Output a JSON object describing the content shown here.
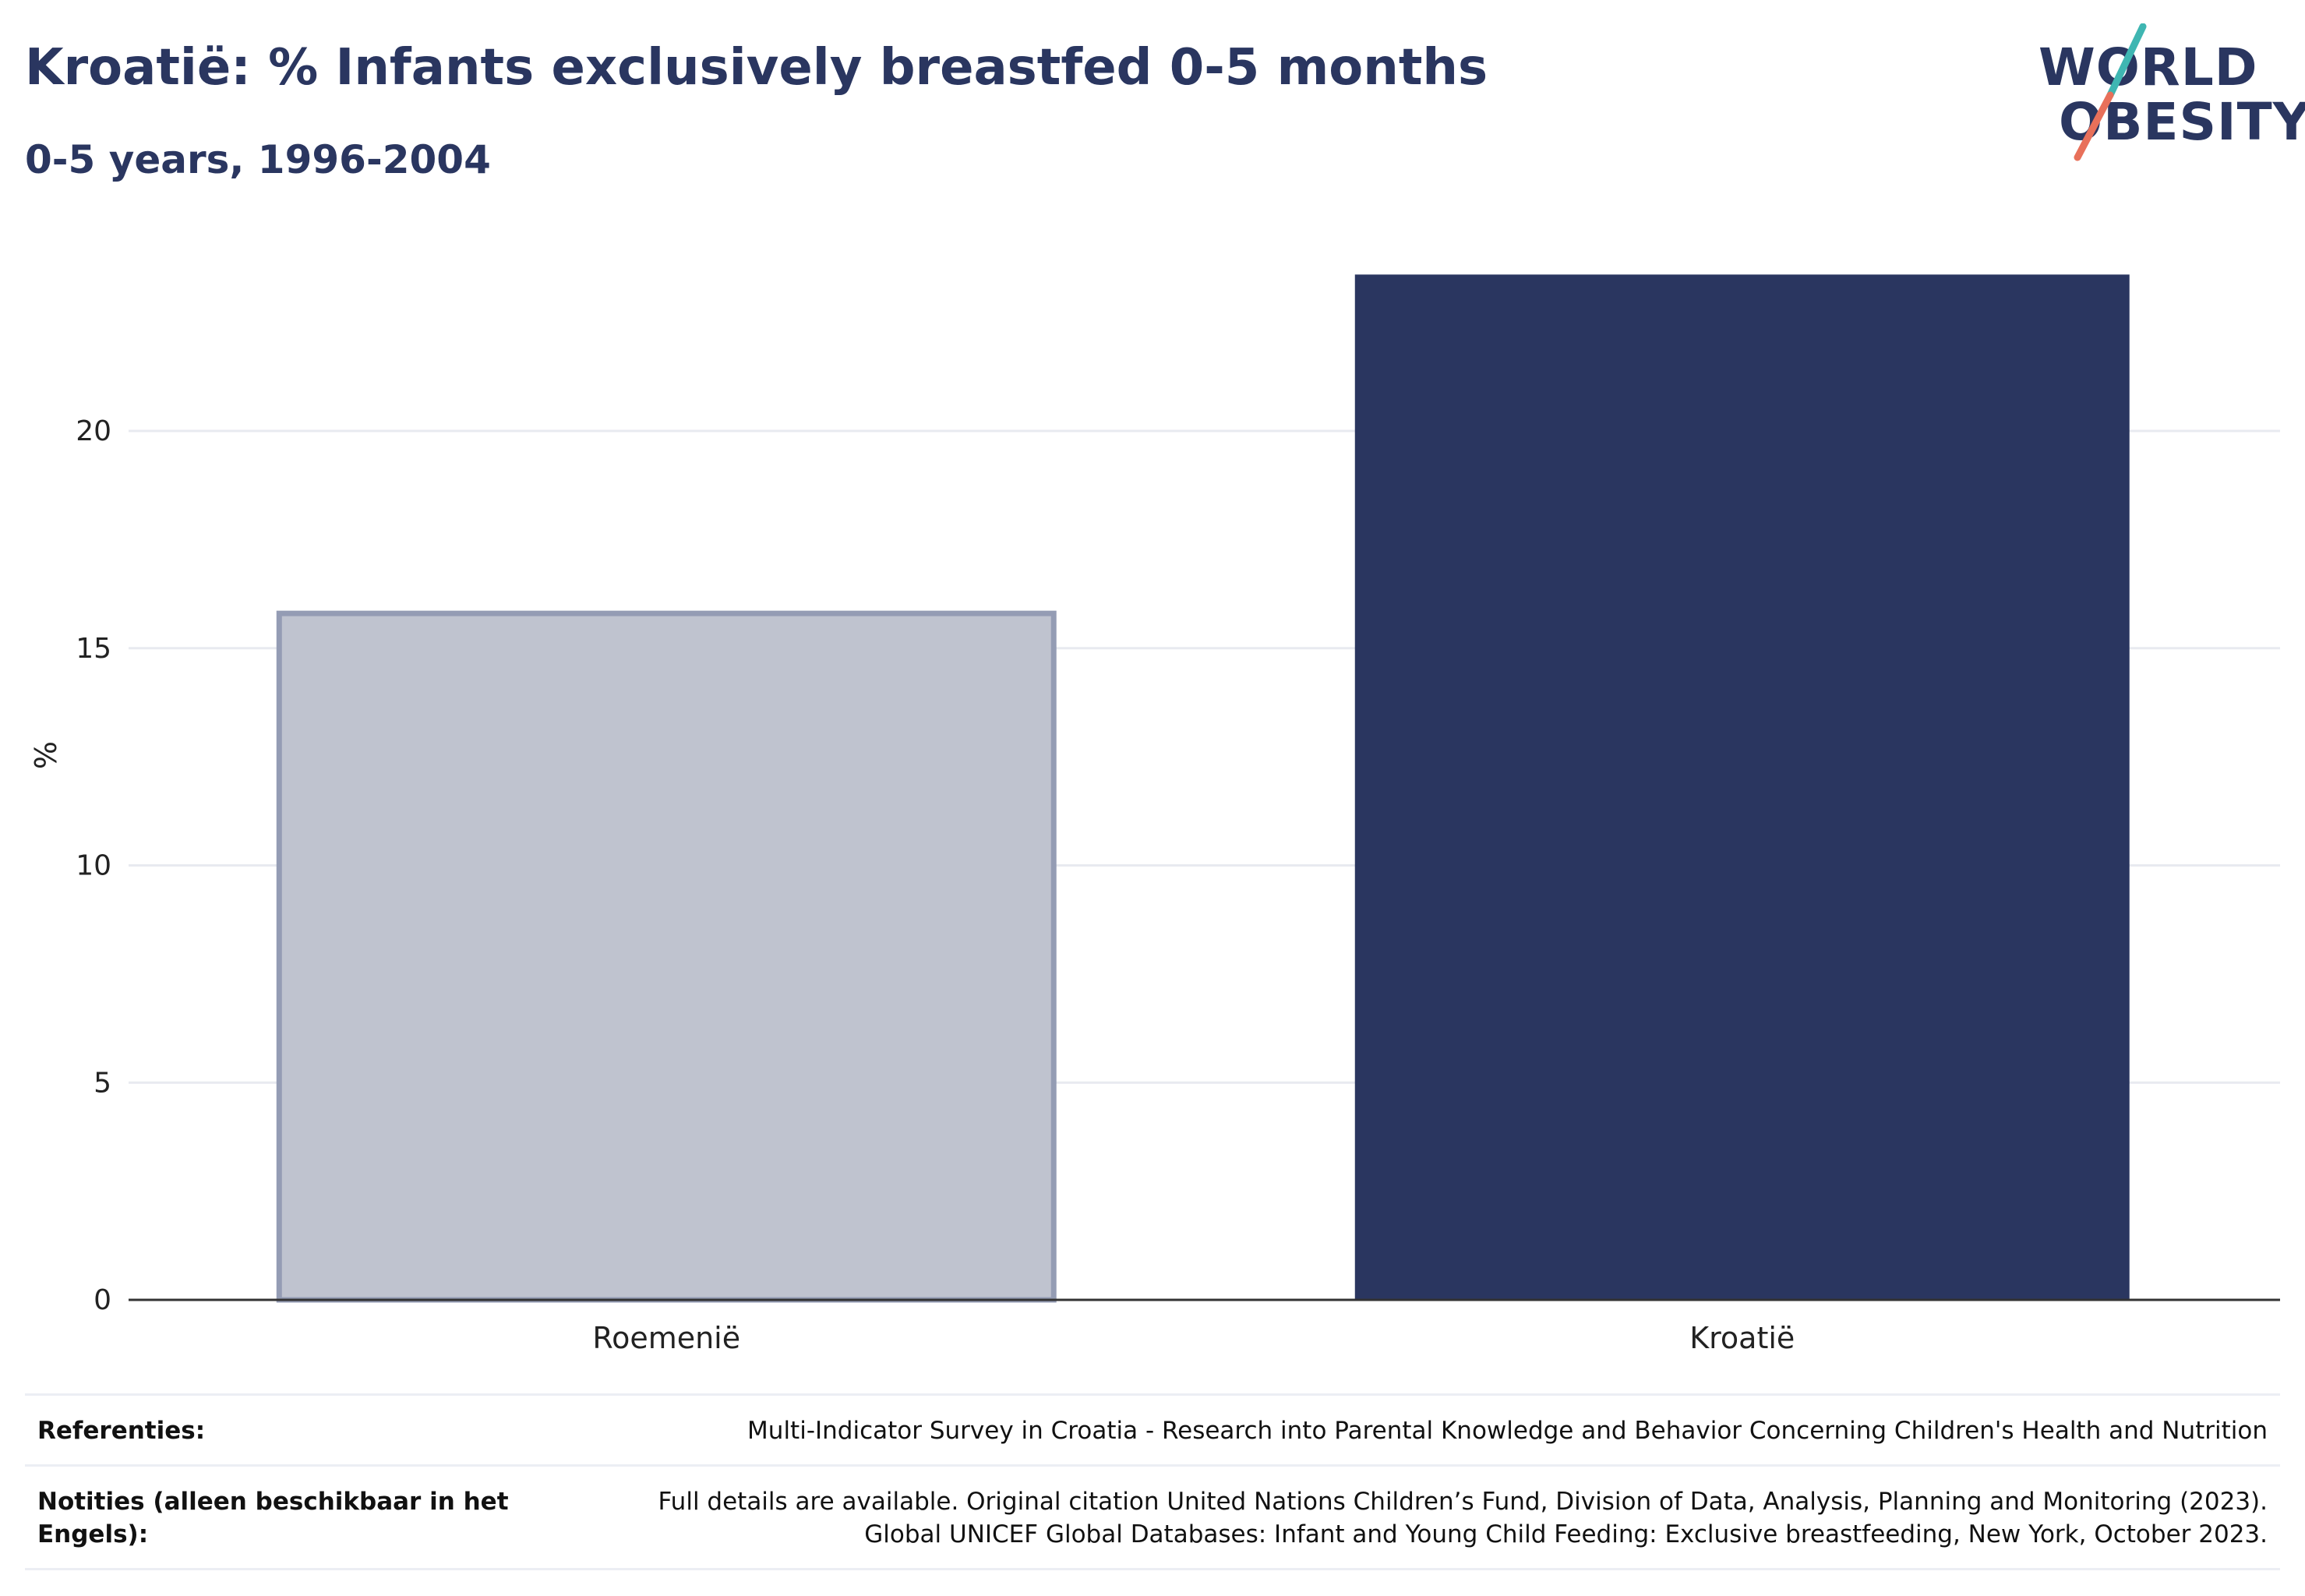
{
  "title": "Kroatië: % Infants exclusively breastfed 0-5 months",
  "subtitle": "0-5 years, 1996-2004",
  "logo": {
    "line1": "WORLD",
    "line2": "OBESITY",
    "slash_colors": [
      "#3fb6b2",
      "#e8705a"
    ]
  },
  "colors": {
    "primary": "#2a3660",
    "highlight_bar": "#2a3660",
    "comparison_bar": "#bfc3cf",
    "comparison_bar_border": "#949cb4",
    "gridline": "#e8eaf0",
    "axis_line": "#333333"
  },
  "chart_data": {
    "type": "bar",
    "categories": [
      "Roemenië",
      "Kroatië"
    ],
    "values": [
      15.8,
      23.6
    ],
    "highlighted": "Kroatië",
    "xlabel": "",
    "ylabel": "%",
    "ylim": [
      0,
      24
    ],
    "yticks": [
      0,
      5,
      10,
      15,
      20
    ],
    "grid": true,
    "legend": "none"
  },
  "footer": {
    "references_label": "Referenties:",
    "references_text": "Multi-Indicator Survey in Croatia - Research into Parental Knowledge and Behavior Concerning Children's Health and Nutrition",
    "notes_label": "Notities (alleen beschikbaar in het Engels):",
    "notes_line1": "Full details are available. Original citation United Nations Children’s Fund, Division of Data, Analysis, Planning and Monitoring (2023).",
    "notes_line2": "Global UNICEF Global Databases: Infant and Young Child Feeding: Exclusive breastfeeding, New York, October 2023."
  }
}
